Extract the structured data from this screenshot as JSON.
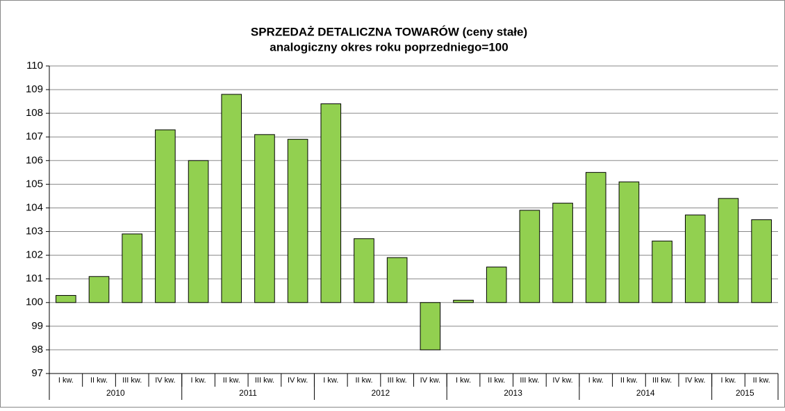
{
  "chart_data": {
    "type": "bar",
    "title": "SPRZEDAŻ DETALICZNA TOWARÓW (ceny stałe)",
    "subtitle": "analogiczny okres roku poprzedniego=100",
    "categories": [
      "I kw.",
      "II kw.",
      "III kw.",
      "IV kw.",
      "I kw.",
      "II kw.",
      "III kw.",
      "IV kw.",
      "I kw.",
      "II kw.",
      "III kw.",
      "IV kw.",
      "I kw.",
      "II kw.",
      "III kw.",
      "IV kw.",
      "I kw.",
      "II kw.",
      "III kw.",
      "IV kw.",
      "I kw.",
      "II kw."
    ],
    "groups": [
      {
        "label": "2010",
        "span": 4
      },
      {
        "label": "2011",
        "span": 4
      },
      {
        "label": "2012",
        "span": 4
      },
      {
        "label": "2013",
        "span": 4
      },
      {
        "label": "2014",
        "span": 4
      },
      {
        "label": "2015",
        "span": 2
      }
    ],
    "values": [
      100.3,
      101.1,
      102.9,
      107.3,
      106.0,
      108.8,
      107.1,
      106.9,
      108.4,
      102.7,
      101.9,
      98.0,
      100.1,
      101.5,
      103.9,
      104.2,
      105.5,
      105.1,
      102.6,
      103.7,
      104.4,
      103.5
    ],
    "baseline": 100,
    "color": "#92d050",
    "ylim": [
      97,
      110
    ],
    "yticks": [
      97,
      98,
      99,
      100,
      101,
      102,
      103,
      104,
      105,
      106,
      107,
      108,
      109,
      110
    ],
    "grid": true
  }
}
